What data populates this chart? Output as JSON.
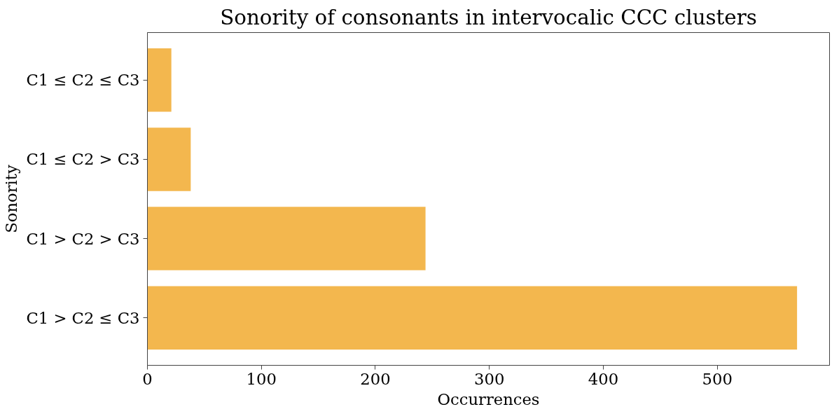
{
  "chart_data": {
    "type": "bar",
    "orientation": "horizontal",
    "title": "Sonority of consonants in intervocalic CCC clusters",
    "xlabel": "Occurrences",
    "ylabel": "Sonority",
    "categories": [
      "C1 ≤ C2 ≤ C3",
      "C1 ≤ C2 > C3",
      "C1 > C2 > C3",
      "C1 > C2 ≤ C3"
    ],
    "values": [
      21,
      38,
      244,
      570
    ],
    "color": "#f3b74e",
    "xlim": [
      0,
      598.5
    ],
    "xticks": [
      0,
      100,
      200,
      300,
      400,
      500
    ],
    "grid": false
  }
}
